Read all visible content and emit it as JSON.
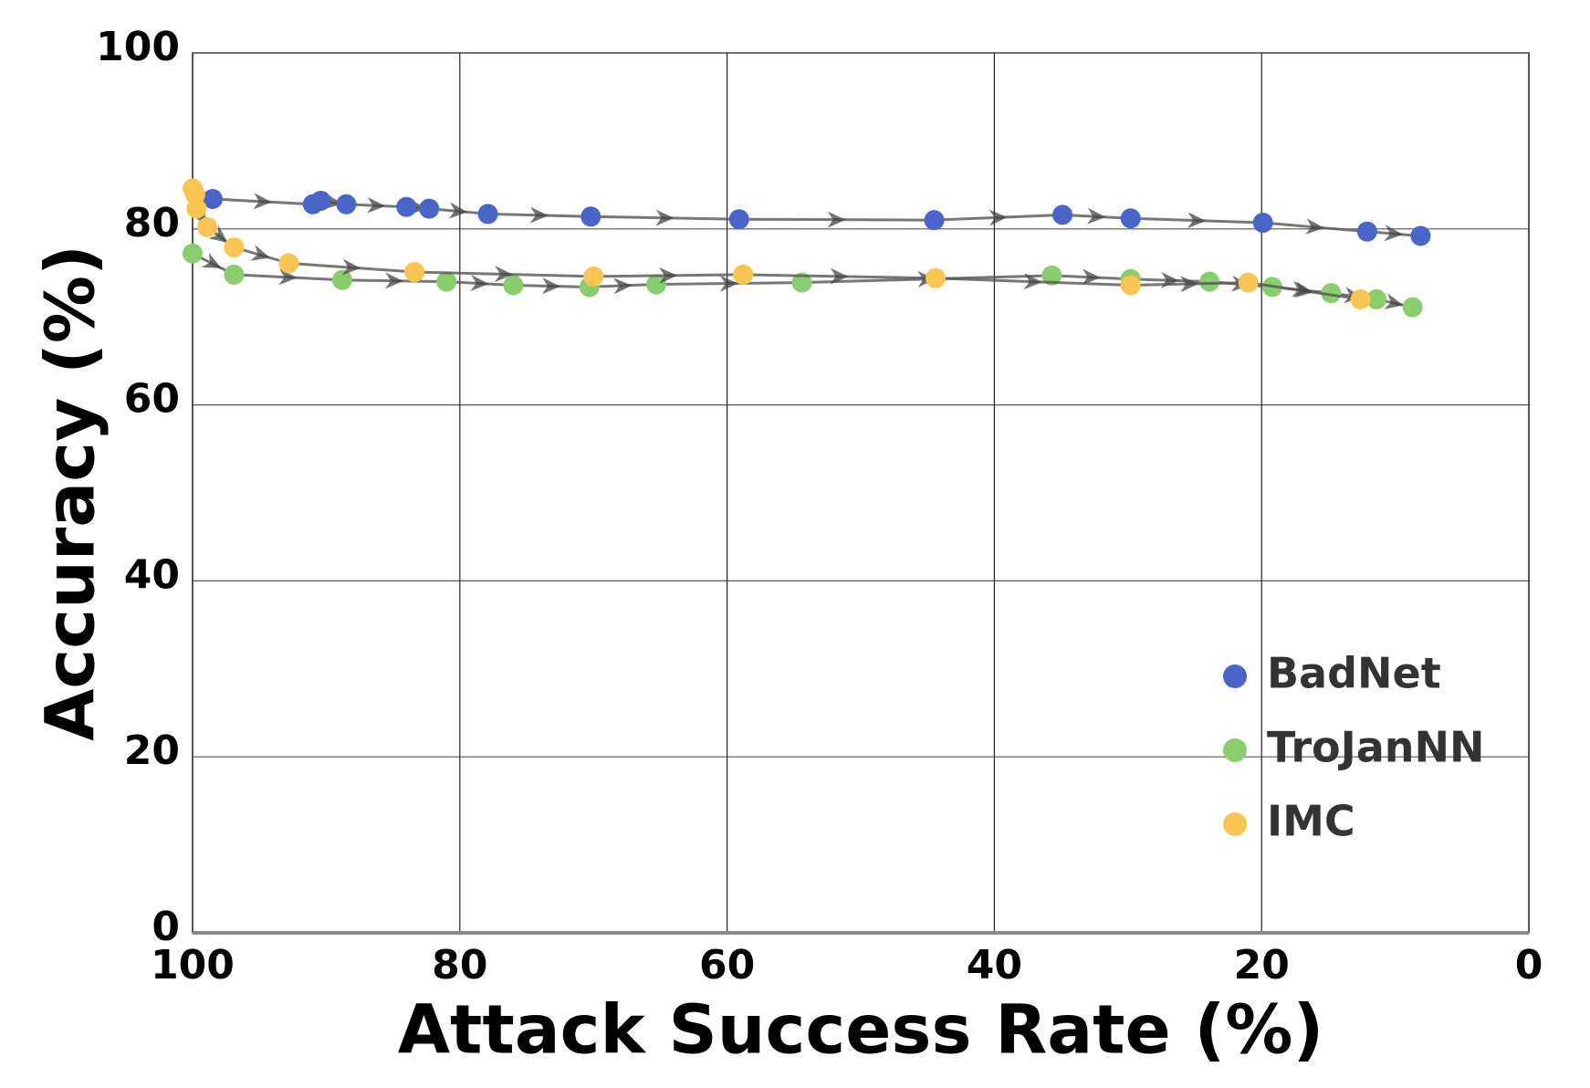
{
  "chart_data": {
    "type": "scatter",
    "xlabel": "Attack Success Rate (%)",
    "ylabel": "Accuracy (%)",
    "xlim": [
      100,
      0
    ],
    "ylim": [
      0,
      100
    ],
    "xticks": [
      100,
      80,
      60,
      40,
      20,
      0
    ],
    "yticks": [
      0,
      20,
      40,
      60,
      80,
      100
    ],
    "grid": true,
    "connect": true,
    "legend": "lower right",
    "series": [
      {
        "name": "BadNet",
        "color": "#4a65c9",
        "x": [
          98.5,
          91.0,
          90.4,
          88.5,
          84.0,
          82.3,
          77.9,
          70.2,
          59.1,
          44.5,
          34.9,
          29.8,
          19.9,
          12.1,
          8.1
        ],
        "values": [
          83.4,
          82.8,
          83.2,
          82.8,
          82.5,
          82.3,
          81.7,
          81.4,
          81.1,
          81.0,
          81.6,
          81.2,
          80.7,
          79.7,
          79.2
        ]
      },
      {
        "name": "TroJanNN",
        "color": "#8acd6e",
        "x": [
          100,
          96.9,
          88.8,
          81.0,
          76.0,
          70.3,
          65.3,
          54.4,
          35.7,
          29.8,
          23.9,
          19.2,
          14.8,
          11.4,
          8.7
        ],
        "values": [
          77.2,
          74.8,
          74.2,
          74.0,
          73.6,
          73.4,
          73.7,
          73.9,
          74.7,
          74.3,
          74.0,
          73.4,
          72.7,
          72.0,
          71.1
        ]
      },
      {
        "name": "IMC",
        "color": "#f8c552",
        "x": [
          100,
          99.8,
          99.7,
          98.9,
          96.9,
          92.8,
          83.4,
          70.0,
          58.8,
          44.4,
          29.8,
          21.0,
          12.6
        ],
        "values": [
          84.6,
          83.9,
          82.3,
          80.2,
          77.9,
          76.1,
          75.1,
          74.6,
          74.8,
          74.4,
          73.6,
          73.9,
          72.0
        ]
      }
    ]
  }
}
